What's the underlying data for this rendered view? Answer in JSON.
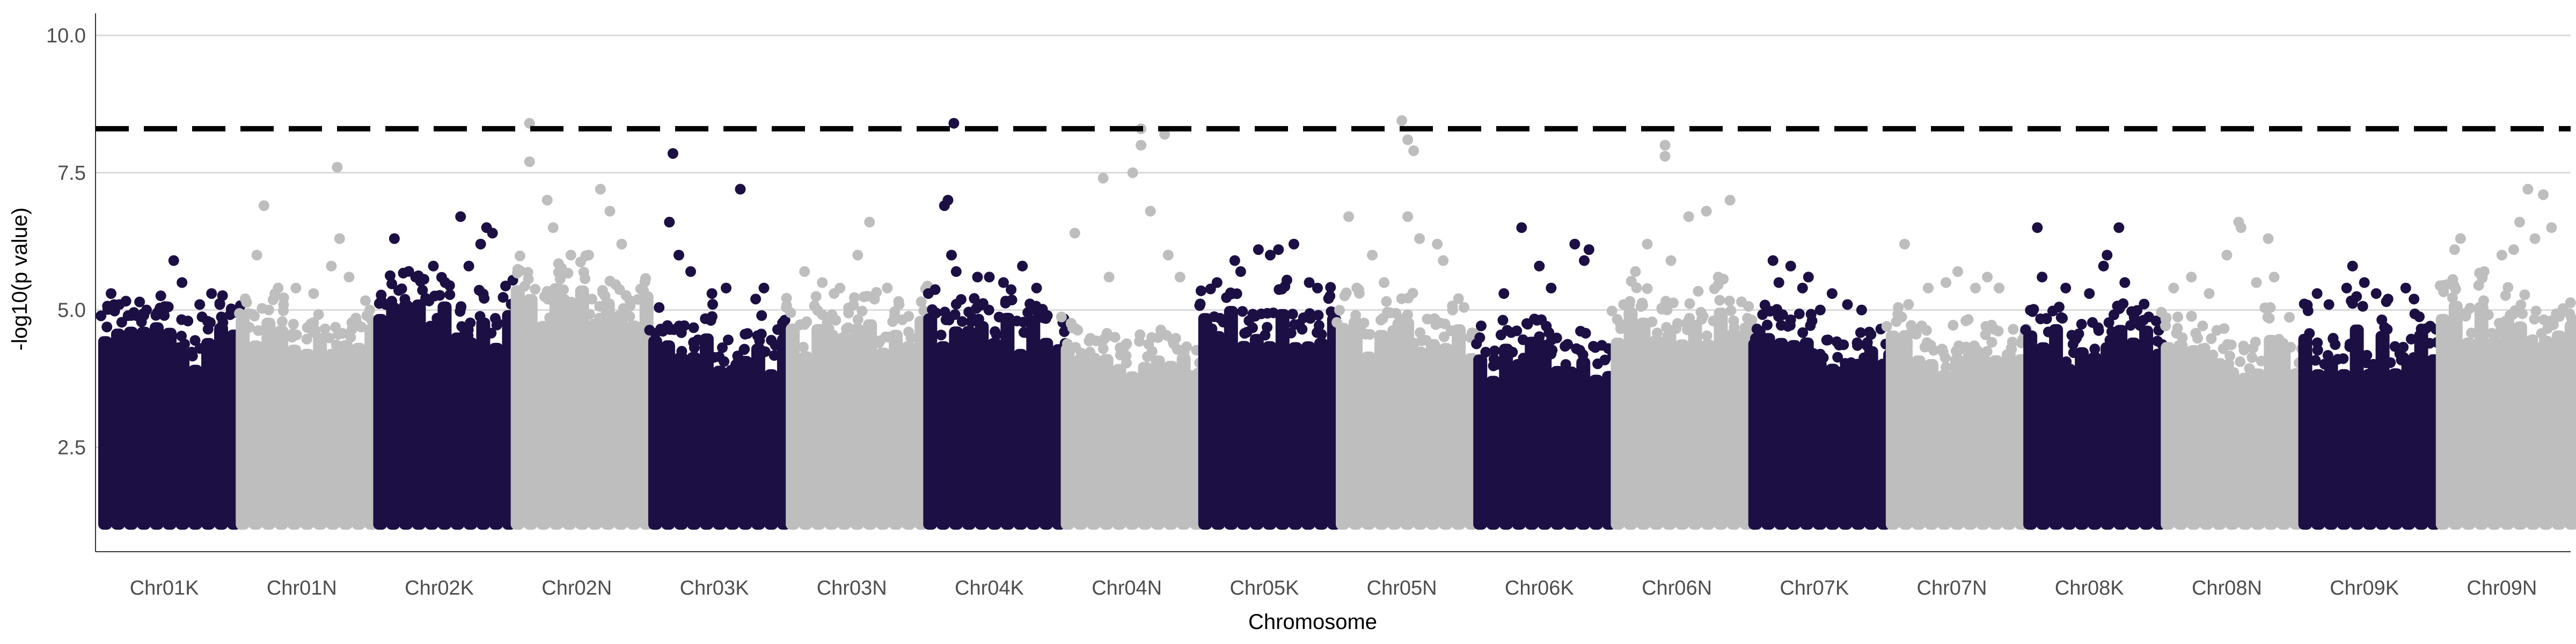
{
  "chart_data": {
    "type": "scatter",
    "title": "",
    "xlabel": "Chromosome",
    "ylabel": "-log10(p value)",
    "ylim": [
      0.6,
      10.4
    ],
    "yticks": [
      2.5,
      5.0,
      7.5,
      10.0
    ],
    "ytick_labels": [
      "2.5",
      "5.0",
      "7.5",
      "10.0"
    ],
    "threshold": 8.3,
    "grid": "horizontal major lines",
    "legend": "none",
    "colors": {
      "odd": "#1c0f44",
      "even": "#bebebe",
      "threshold": "#000000",
      "grid": "#d9d9d9"
    },
    "categories": [
      "Chr01K",
      "Chr01N",
      "Chr02K",
      "Chr02N",
      "Chr03K",
      "Chr03N",
      "Chr04K",
      "Chr04N",
      "Chr05K",
      "Chr05N",
      "Chr06K",
      "Chr06N",
      "Chr07K",
      "Chr07N",
      "Chr08K",
      "Chr08N",
      "Chr09K",
      "Chr09N"
    ],
    "series": [
      {
        "category": "Chr01K",
        "color": "dark",
        "y_min": 1.0,
        "body_max": [
          4.0,
          4.8
        ],
        "outliers": [
          [
            0.05,
            5.3
          ],
          [
            0.12,
            5.1
          ],
          [
            0.22,
            4.9
          ],
          [
            0.35,
            5.0
          ],
          [
            0.5,
            4.9
          ],
          [
            0.58,
            5.9
          ],
          [
            0.65,
            5.5
          ],
          [
            0.7,
            4.8
          ],
          [
            0.8,
            5.1
          ],
          [
            0.9,
            5.3
          ],
          [
            0.97,
            5.1
          ]
        ]
      },
      {
        "category": "Chr01N",
        "color": "light",
        "y_min": 1.0,
        "body_max": [
          4.2,
          5.0
        ],
        "outliers": [
          [
            0.12,
            6.0
          ],
          [
            0.18,
            6.9
          ],
          [
            0.3,
            5.4
          ],
          [
            0.45,
            5.4
          ],
          [
            0.6,
            5.3
          ],
          [
            0.75,
            5.8
          ],
          [
            0.82,
            6.3
          ],
          [
            0.8,
            7.6
          ],
          [
            0.9,
            5.6
          ]
        ]
      },
      {
        "category": "Chr02K",
        "color": "dark",
        "y_min": 1.0,
        "body_max": [
          4.3,
          5.2
        ],
        "outliers": [
          [
            0.12,
            6.3
          ],
          [
            0.3,
            5.6
          ],
          [
            0.45,
            5.8
          ],
          [
            0.55,
            5.5
          ],
          [
            0.68,
            6.7
          ],
          [
            0.75,
            5.8
          ],
          [
            0.85,
            6.2
          ],
          [
            0.9,
            6.5
          ],
          [
            0.95,
            6.4
          ]
        ]
      },
      {
        "category": "Chr02N",
        "color": "light",
        "y_min": 1.0,
        "body_max": [
          4.8,
          5.5
        ],
        "outliers": [
          [
            0.1,
            8.4
          ],
          [
            0.1,
            7.7
          ],
          [
            0.25,
            7.0
          ],
          [
            0.3,
            6.5
          ],
          [
            0.45,
            6.0
          ],
          [
            0.6,
            6.0
          ],
          [
            0.7,
            7.2
          ],
          [
            0.78,
            6.8
          ],
          [
            0.88,
            6.2
          ]
        ]
      },
      {
        "category": "Chr03K",
        "color": "dark",
        "y_min": 1.0,
        "body_max": [
          3.9,
          4.6
        ],
        "outliers": [
          [
            0.15,
            7.85
          ],
          [
            0.12,
            6.6
          ],
          [
            0.2,
            6.0
          ],
          [
            0.3,
            5.7
          ],
          [
            0.48,
            5.3
          ],
          [
            0.6,
            5.4
          ],
          [
            0.72,
            7.2
          ],
          [
            0.85,
            5.2
          ],
          [
            0.92,
            5.4
          ]
        ]
      },
      {
        "category": "Chr03N",
        "color": "light",
        "y_min": 1.0,
        "body_max": [
          4.2,
          4.9
        ],
        "outliers": [
          [
            0.1,
            5.7
          ],
          [
            0.25,
            5.5
          ],
          [
            0.35,
            5.3
          ],
          [
            0.4,
            5.4
          ],
          [
            0.55,
            6.0
          ],
          [
            0.65,
            6.6
          ],
          [
            0.8,
            5.4
          ],
          [
            0.9,
            5.1
          ]
        ]
      },
      {
        "category": "Chr04K",
        "color": "dark",
        "y_min": 1.0,
        "body_max": [
          4.2,
          5.0
        ],
        "outliers": [
          [
            0.12,
            6.9
          ],
          [
            0.15,
            7.0
          ],
          [
            0.18,
            6.0
          ],
          [
            0.22,
            5.7
          ],
          [
            0.2,
            8.4
          ],
          [
            0.4,
            5.6
          ],
          [
            0.5,
            5.6
          ],
          [
            0.62,
            5.5
          ],
          [
            0.78,
            5.8
          ],
          [
            0.9,
            5.4
          ]
        ]
      },
      {
        "category": "Chr04N",
        "color": "light",
        "y_min": 1.0,
        "body_max": [
          3.8,
          4.6
        ],
        "outliers": [
          [
            0.06,
            6.4
          ],
          [
            0.3,
            7.4
          ],
          [
            0.35,
            5.6
          ],
          [
            0.55,
            7.5
          ],
          [
            0.62,
            8.0
          ],
          [
            0.62,
            8.3
          ],
          [
            0.7,
            6.8
          ],
          [
            0.82,
            8.2
          ],
          [
            0.85,
            6.0
          ],
          [
            0.95,
            5.6
          ]
        ]
      },
      {
        "category": "Chr05K",
        "color": "dark",
        "y_min": 1.0,
        "body_max": [
          4.4,
          5.2
        ],
        "outliers": [
          [
            0.1,
            5.5
          ],
          [
            0.25,
            5.9
          ],
          [
            0.3,
            5.7
          ],
          [
            0.45,
            6.1
          ],
          [
            0.55,
            6.0
          ],
          [
            0.62,
            6.1
          ],
          [
            0.75,
            6.2
          ],
          [
            0.88,
            5.5
          ],
          [
            0.95,
            5.4
          ]
        ]
      },
      {
        "category": "Chr05N",
        "color": "light",
        "y_min": 1.0,
        "body_max": [
          4.0,
          4.9
        ],
        "outliers": [
          [
            0.05,
            6.7
          ],
          [
            0.25,
            6.0
          ],
          [
            0.35,
            5.5
          ],
          [
            0.5,
            8.45
          ],
          [
            0.55,
            8.1
          ],
          [
            0.6,
            7.9
          ],
          [
            0.55,
            6.7
          ],
          [
            0.65,
            6.3
          ],
          [
            0.8,
            6.2
          ],
          [
            0.85,
            5.9
          ]
        ]
      },
      {
        "category": "Chr06K",
        "color": "dark",
        "y_min": 1.0,
        "body_max": [
          3.6,
          4.6
        ],
        "outliers": [
          [
            0.2,
            5.3
          ],
          [
            0.35,
            6.5
          ],
          [
            0.5,
            5.8
          ],
          [
            0.6,
            5.4
          ],
          [
            0.8,
            6.2
          ],
          [
            0.88,
            5.9
          ],
          [
            0.92,
            6.1
          ]
        ]
      },
      {
        "category": "Chr06N",
        "color": "light",
        "y_min": 1.0,
        "body_max": [
          4.4,
          5.2
        ],
        "outliers": [
          [
            0.05,
            5.1
          ],
          [
            0.15,
            5.7
          ],
          [
            0.25,
            6.2
          ],
          [
            0.4,
            7.8
          ],
          [
            0.4,
            8.0
          ],
          [
            0.45,
            5.9
          ],
          [
            0.6,
            6.7
          ],
          [
            0.75,
            6.8
          ],
          [
            0.85,
            5.6
          ],
          [
            0.95,
            7.0
          ]
        ]
      },
      {
        "category": "Chr07K",
        "color": "dark",
        "y_min": 1.0,
        "body_max": [
          4.0,
          4.6
        ],
        "outliers": [
          [
            0.15,
            5.9
          ],
          [
            0.2,
            5.5
          ],
          [
            0.3,
            5.8
          ],
          [
            0.4,
            5.4
          ],
          [
            0.45,
            5.6
          ],
          [
            0.55,
            5.0
          ],
          [
            0.65,
            5.3
          ],
          [
            0.78,
            5.1
          ],
          [
            0.9,
            5.0
          ]
        ]
      },
      {
        "category": "Chr07N",
        "color": "light",
        "y_min": 1.0,
        "body_max": [
          3.8,
          4.8
        ],
        "outliers": [
          [
            0.1,
            6.2
          ],
          [
            0.3,
            5.4
          ],
          [
            0.45,
            5.5
          ],
          [
            0.55,
            5.7
          ],
          [
            0.7,
            5.4
          ],
          [
            0.8,
            5.6
          ],
          [
            0.9,
            5.4
          ]
        ]
      },
      {
        "category": "Chr08K",
        "color": "dark",
        "y_min": 1.0,
        "body_max": [
          4.0,
          4.9
        ],
        "outliers": [
          [
            0.06,
            6.5
          ],
          [
            0.1,
            5.6
          ],
          [
            0.3,
            5.4
          ],
          [
            0.5,
            5.3
          ],
          [
            0.62,
            5.8
          ],
          [
            0.65,
            6.0
          ],
          [
            0.75,
            6.5
          ],
          [
            0.8,
            5.5
          ]
        ]
      },
      {
        "category": "Chr08N",
        "color": "light",
        "y_min": 1.0,
        "body_max": [
          3.8,
          4.8
        ],
        "outliers": [
          [
            0.05,
            5.4
          ],
          [
            0.2,
            5.6
          ],
          [
            0.35,
            5.3
          ],
          [
            0.5,
            6.0
          ],
          [
            0.6,
            6.6
          ],
          [
            0.62,
            6.5
          ],
          [
            0.75,
            5.5
          ],
          [
            0.85,
            6.3
          ],
          [
            0.9,
            5.6
          ]
        ]
      },
      {
        "category": "Chr09K",
        "color": "dark",
        "y_min": 1.0,
        "body_max": [
          3.8,
          4.8
        ],
        "outliers": [
          [
            0.1,
            5.3
          ],
          [
            0.2,
            5.1
          ],
          [
            0.35,
            5.4
          ],
          [
            0.4,
            5.8
          ],
          [
            0.5,
            5.5
          ],
          [
            0.6,
            5.3
          ],
          [
            0.7,
            5.2
          ],
          [
            0.85,
            5.4
          ],
          [
            0.92,
            5.2
          ]
        ]
      },
      {
        "category": "Chr09N",
        "color": "light",
        "y_min": 1.0,
        "body_max": [
          4.4,
          5.2
        ],
        "outliers": [
          [
            0.1,
            6.1
          ],
          [
            0.15,
            6.3
          ],
          [
            0.35,
            5.7
          ],
          [
            0.5,
            6.0
          ],
          [
            0.6,
            6.1
          ],
          [
            0.65,
            6.6
          ],
          [
            0.72,
            7.2
          ],
          [
            0.78,
            6.3
          ],
          [
            0.85,
            7.1
          ],
          [
            0.92,
            6.5
          ]
        ]
      }
    ]
  }
}
